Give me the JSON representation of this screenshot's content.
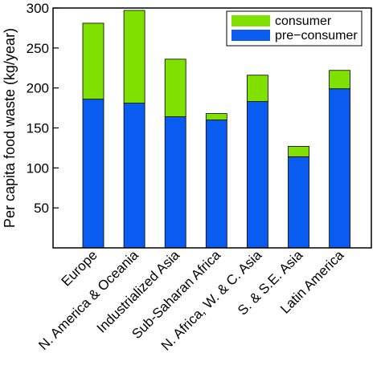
{
  "chart_data": {
    "type": "bar",
    "stacked": true,
    "ylabel": "Per capita food waste (kg/year)",
    "xlabel": "",
    "title": "",
    "ylim": [
      0,
      300
    ],
    "yticks": [
      50,
      100,
      150,
      200,
      250,
      300
    ],
    "ytick_labels": [
      "50",
      "100",
      "150",
      "200",
      "250",
      "300"
    ],
    "grid": false,
    "legend_position": "top-right",
    "categories": [
      "Europe",
      "N. America & Oceania",
      "Industrialized Asia",
      "Sub-Saharan Africa",
      "N. Africa, W. & C. Asia",
      "S. & S.E. Asia",
      "Latin America"
    ],
    "series": [
      {
        "name": "pre−consumer",
        "color": "#0a5cf0",
        "values": [
          186,
          181,
          164,
          160,
          183,
          114,
          199
        ]
      },
      {
        "name": "consumer",
        "color": "#80e000",
        "values": [
          95,
          116,
          72,
          8,
          33,
          13,
          23
        ]
      }
    ],
    "legend_order": [
      "consumer",
      "pre−consumer"
    ]
  }
}
